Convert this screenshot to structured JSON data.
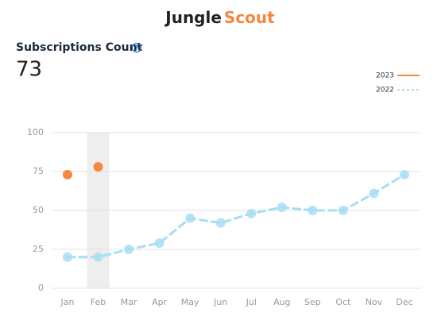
{
  "logo": {
    "first": "Jungle",
    "second": "Scout"
  },
  "metric": {
    "title": "Subscriptions Count",
    "help_icon": "?",
    "value": 73
  },
  "chart_data": {
    "type": "line",
    "categories": [
      "Jan",
      "Feb",
      "Mar",
      "Apr",
      "May",
      "Jun",
      "Jul",
      "Aug",
      "Sep",
      "Oct",
      "Nov",
      "Dec"
    ],
    "series": [
      {
        "name": "2023",
        "color": "#f4883f",
        "dashed": false,
        "connect": false,
        "values": [
          73,
          78,
          null,
          null,
          null,
          null,
          null,
          null,
          null,
          null,
          null,
          null
        ]
      },
      {
        "name": "2022",
        "color": "#a6def2",
        "dashed": true,
        "connect": true,
        "values": [
          20,
          20,
          25,
          29,
          45,
          42,
          48,
          52,
          50,
          50,
          61,
          73
        ]
      }
    ],
    "ylim": [
      0,
      100
    ],
    "yticks": [
      0,
      25,
      50,
      75,
      100
    ],
    "grid": true,
    "highlight_index": 1,
    "legend": "top-right"
  }
}
